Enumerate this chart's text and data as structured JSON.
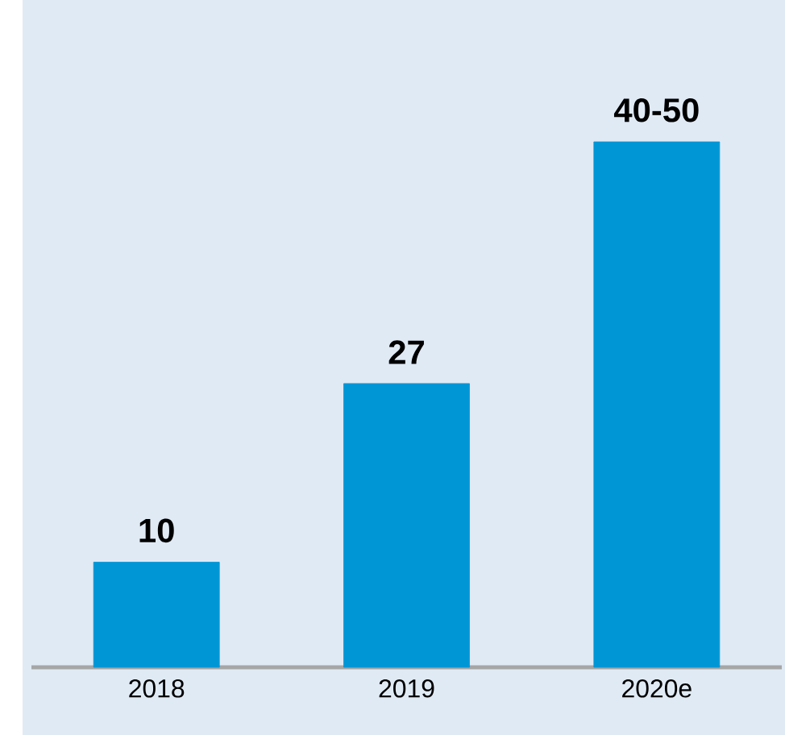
{
  "chart_data": {
    "type": "bar",
    "categories": [
      "2018",
      "2019",
      "2020e"
    ],
    "values": [
      10,
      27,
      50
    ],
    "value_labels": [
      "10",
      "27",
      "40-50"
    ],
    "colors": [
      "#0096d6",
      "#0096d6",
      "#0096d6"
    ]
  }
}
